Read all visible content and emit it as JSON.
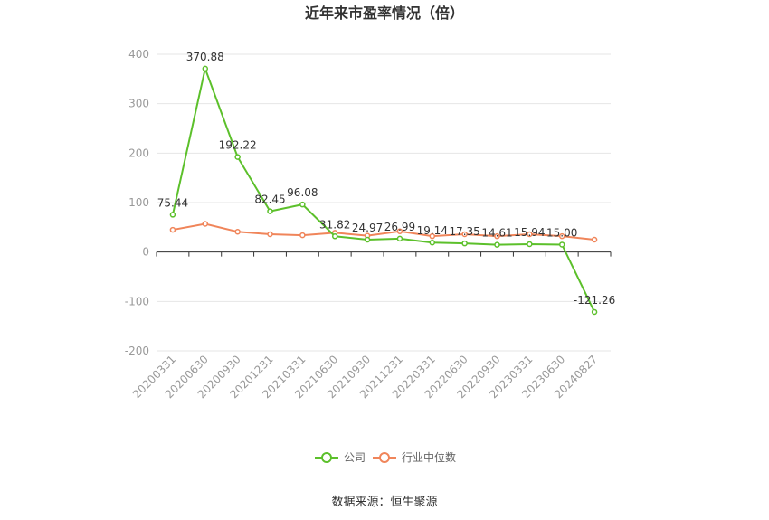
{
  "chart_data": {
    "type": "line",
    "title": "近年来市盈率情况（倍）",
    "categories": [
      "20200331",
      "20200630",
      "20200930",
      "20201231",
      "20210331",
      "20210630",
      "20210930",
      "20211231",
      "20220331",
      "20220630",
      "20220930",
      "20230331",
      "20230630",
      "20240827"
    ],
    "series": [
      {
        "name": "公司",
        "color": "#5cc02b",
        "values": [
          75.44,
          370.88,
          192.22,
          82.45,
          96.08,
          31.82,
          24.97,
          26.99,
          19.14,
          17.35,
          14.61,
          15.94,
          15.0,
          -121.26
        ],
        "labels": [
          "75.44",
          "370.88",
          "192.22",
          "82.45",
          "96.08",
          "31.82",
          "24.97",
          "26.99",
          "19.14",
          "17.35",
          "14.61",
          "15.94",
          "15.00",
          "-121.26"
        ]
      },
      {
        "name": "行业中位数",
        "color": "#f0855a",
        "values": [
          45,
          57,
          41,
          36,
          34,
          39,
          33,
          42,
          32,
          36,
          32,
          36,
          32,
          25
        ]
      }
    ],
    "yticks": [
      "400",
      "300",
      "200",
      "100",
      "0",
      "-100",
      "-200"
    ],
    "ylim": [
      -200,
      400
    ],
    "grid": true,
    "legend_position": "bottom"
  },
  "source": "数据来源：恒生聚源"
}
